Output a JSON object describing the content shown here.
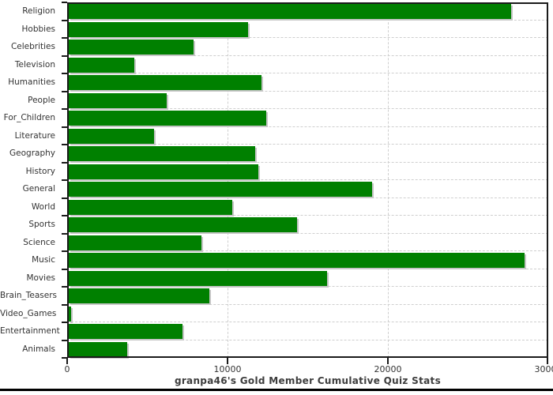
{
  "chart_data": {
    "type": "bar",
    "orientation": "horizontal",
    "title": "granpa46's Gold Member Cumulative Quiz Stats",
    "categories": [
      "Religion",
      "Hobbies",
      "Celebrities",
      "Television",
      "Humanities",
      "People",
      "For_Children",
      "Literature",
      "Geography",
      "History",
      "General",
      "World",
      "Sports",
      "Science",
      "Music",
      "Movies",
      "Brain_Teasers",
      "Video_Games",
      "Entertainment",
      "Animals"
    ],
    "values": [
      27600,
      11200,
      7800,
      4100,
      12000,
      6100,
      12300,
      5300,
      11650,
      11800,
      18900,
      10200,
      14250,
      8300,
      28400,
      16100,
      8750,
      150,
      7100,
      3650
    ],
    "xlabel": "",
    "ylabel": "",
    "xlim": [
      0,
      30000
    ],
    "x_ticks": [
      0,
      10000,
      20000,
      30000
    ],
    "x_tick_labels": [
      "0",
      "10000",
      "20000",
      "30000"
    ],
    "grid": "dashed",
    "legend": "none",
    "bar_color": "#008000",
    "bar_shadow_color": "#c6c6c6",
    "gridline_color": "#cfcfcf",
    "frame_color": "#1a1a1a"
  }
}
